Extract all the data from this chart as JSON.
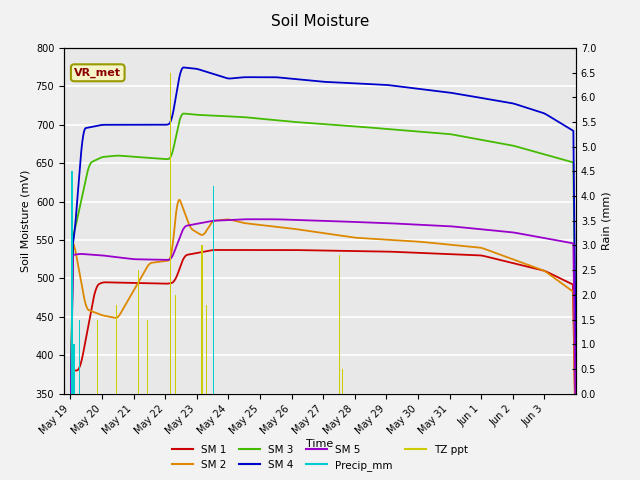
{
  "title": "Soil Moisture",
  "xlabel": "Time",
  "ylabel_left": "Soil Moisture (mV)",
  "ylabel_right": "Rain (mm)",
  "ylim_left": [
    350,
    800
  ],
  "ylim_right": [
    0.0,
    7.0
  ],
  "yticks_left": [
    350,
    400,
    450,
    500,
    550,
    600,
    650,
    700,
    750,
    800
  ],
  "yticks_right": [
    0.0,
    0.5,
    1.0,
    1.5,
    2.0,
    2.5,
    3.0,
    3.5,
    4.0,
    4.5,
    5.0,
    5.5,
    6.0,
    6.5,
    7.0
  ],
  "background_color": "#f2f2f2",
  "plot_bg_color": "#e8e8e8",
  "vr_met_label": "VR_met",
  "xtick_labels": [
    "May 19",
    "May 20",
    "May 21",
    "May 22",
    "May 23",
    "May 24",
    "May 25",
    "May 26",
    "May 27",
    "May 28",
    "May 29",
    "May 30",
    "May 31",
    "Jun 1",
    "Jun 2",
    "Jun 3"
  ],
  "colors": {
    "SM1": "#cc0000",
    "SM2": "#dd8800",
    "SM3": "#44bb00",
    "SM4": "#0000cc",
    "SM5": "#9900cc",
    "precip": "#00cccc",
    "tzppt": "#cccc00"
  },
  "figsize": [
    6.4,
    4.8
  ],
  "dpi": 100
}
